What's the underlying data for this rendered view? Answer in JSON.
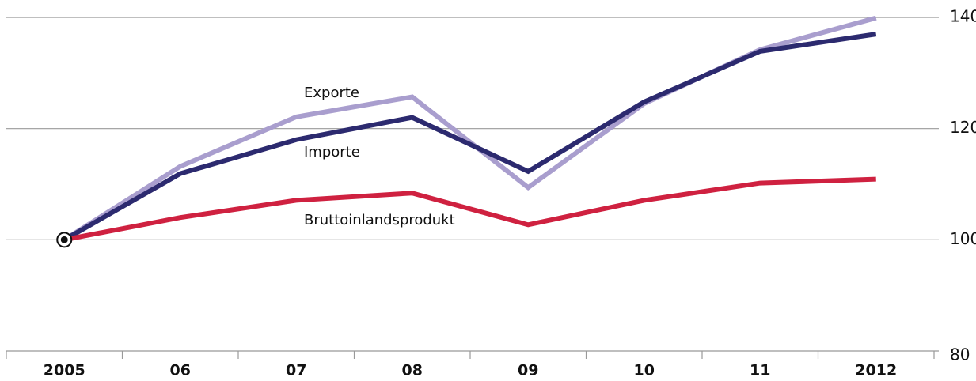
{
  "chart_data": {
    "type": "line",
    "categories": [
      "2005",
      "06",
      "07",
      "08",
      "09",
      "10",
      "11",
      "2012"
    ],
    "series": [
      {
        "name": "Exporte",
        "color": "#a99ece",
        "values": [
          100,
          113.2,
          122.1,
          125.7,
          109.4,
          124.5,
          134.2,
          139.9
        ]
      },
      {
        "name": "Importe",
        "color": "#2c2a6f",
        "values": [
          100,
          111.9,
          118,
          122,
          112.3,
          124.8,
          133.9,
          137
        ]
      },
      {
        "name": "Bruttoinlandsprodukt",
        "color": "#cf2140",
        "values": [
          100,
          104,
          107.1,
          108.4,
          102.7,
          107.1,
          110.2,
          110.9
        ]
      }
    ],
    "ylim": [
      80,
      140
    ],
    "yticks": [
      80,
      100,
      120,
      140
    ],
    "grid": true,
    "y_axis_side": "right"
  }
}
